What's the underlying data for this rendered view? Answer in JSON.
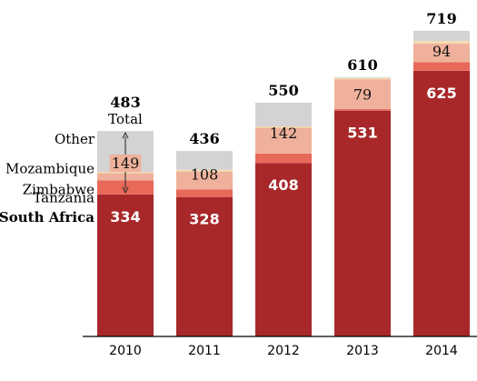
{
  "chart_data": {
    "type": "bar",
    "stacked": true,
    "categories": [
      "2010",
      "2011",
      "2012",
      "2013",
      "2014"
    ],
    "series": [
      {
        "name": "South Africa",
        "values": [
          334,
          328,
          408,
          531,
          625
        ],
        "color": "#a8282a"
      },
      {
        "name": "Tanzania",
        "values": [
          33,
          18,
          22,
          4,
          20
        ],
        "color": "#e8685a"
      },
      {
        "name": "Zimbabwe",
        "values": [
          17,
          42,
          61,
          70,
          44
        ],
        "color": "#efb19b"
      },
      {
        "name": "Mozambique",
        "values": [
          3,
          4,
          3,
          3,
          6
        ],
        "color": "#f4dcb0"
      },
      {
        "name": "Other",
        "values": [
          96,
          44,
          56,
          2,
          24
        ],
        "color": "#d3d3d3"
      }
    ],
    "bottom_labels": [
      "334",
      "328",
      "408",
      "531",
      "625"
    ],
    "middle_labels": [
      "149",
      "108",
      "142",
      "79",
      "94"
    ],
    "totals": [
      "483",
      "436",
      "550",
      "610",
      "719"
    ],
    "total_label": "Total",
    "ylim": [
      0,
      740
    ],
    "grid": false,
    "legend_placement": "left of first bar"
  }
}
